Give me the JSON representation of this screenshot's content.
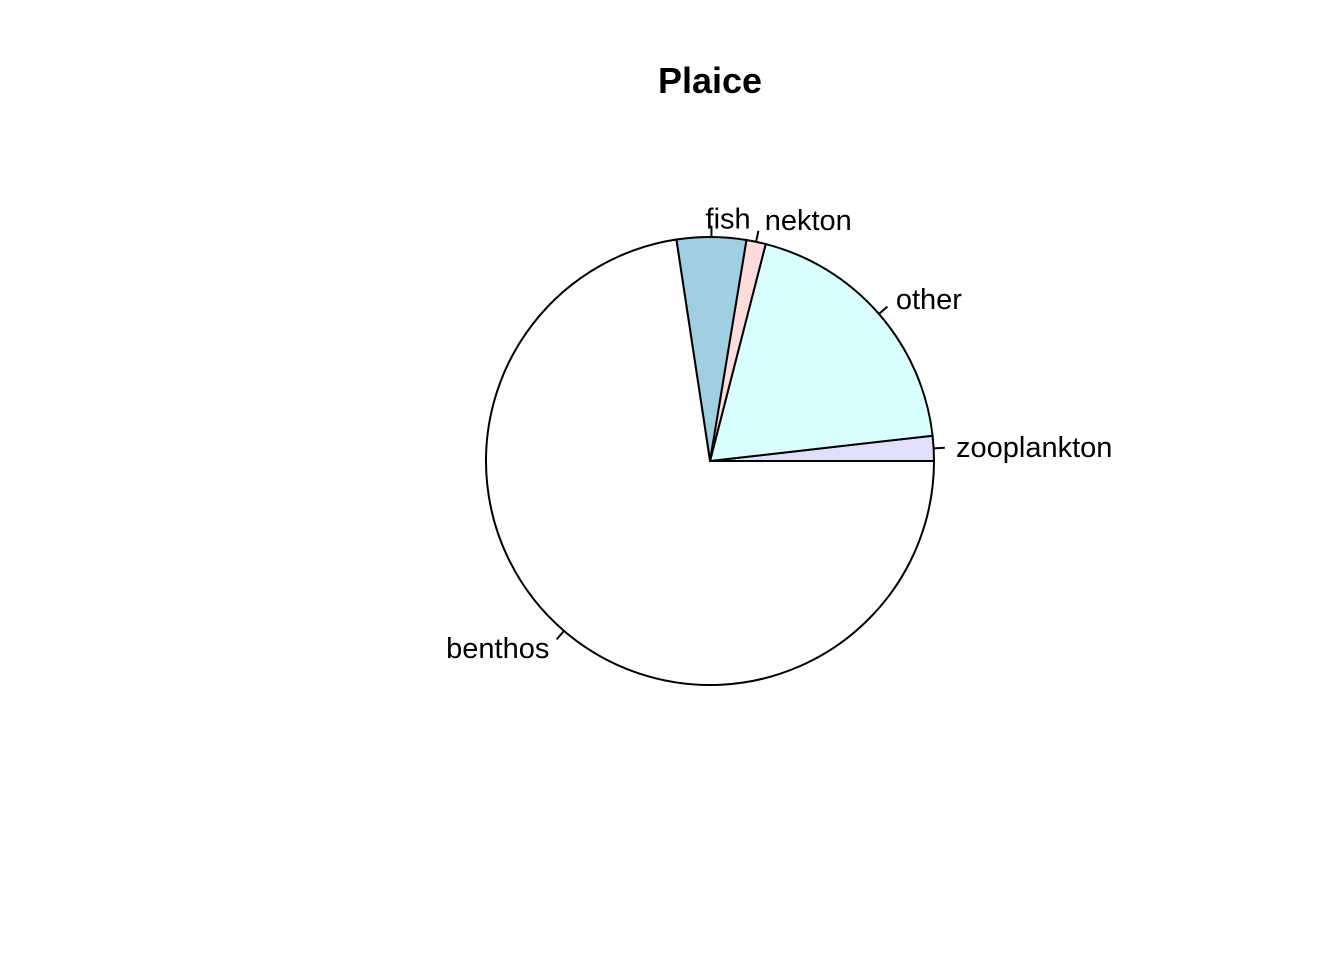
{
  "chart_data": {
    "type": "pie",
    "title": "Plaice",
    "start": "counterclockwise from 3 o'clock",
    "slices": [
      {
        "label": "zooplankton",
        "value": 1.8,
        "color": "#e0e0fc"
      },
      {
        "label": "other",
        "value": 19.2,
        "color": "#d9fffe"
      },
      {
        "label": "nekton",
        "value": 1.4,
        "color": "#ffdcdc"
      },
      {
        "label": "fish",
        "value": 5.0,
        "color": "#9fcfe0"
      },
      {
        "label": "benthos",
        "value": 72.6,
        "color": "#ffffff"
      }
    ]
  }
}
